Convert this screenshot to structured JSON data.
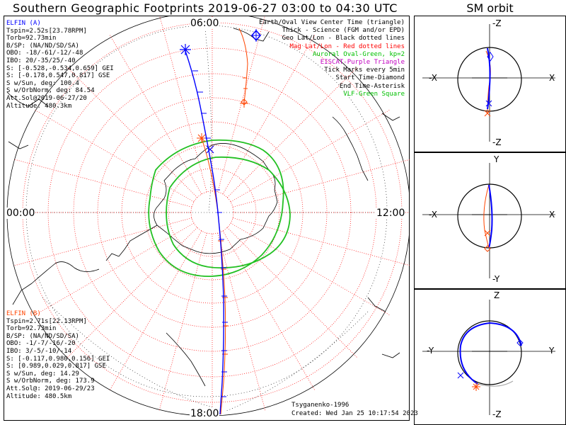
{
  "title": "Southern Geographic Footprints 2019-06-27 03:00 to 04:30 UTC",
  "sm_title": "SM orbit",
  "mlt_labels": {
    "top": "06:00",
    "left": "00:00",
    "right": "12:00",
    "bottom": "18:00"
  },
  "legend": [
    {
      "text": "Earth/Oval View Center Time (triangle)",
      "color": "#000000"
    },
    {
      "text": "Thick - Science (FGM and/or EPD)",
      "color": "#000000"
    },
    {
      "text": "Geo Lat/Lon - Black dotted lines",
      "color": "#000000"
    },
    {
      "text": "Mag Lat/Lon - Red dotted lines",
      "color": "#ff0000"
    },
    {
      "text": "Auroral Oval-Green, kp=2",
      "color": "#00c000"
    },
    {
      "text": "EISCAT-Purple Triangle",
      "color": "#c000c0"
    },
    {
      "text": "Tick Marks every 5min",
      "color": "#000000"
    },
    {
      "text": "Start Time-Diamond",
      "color": "#000000"
    },
    {
      "text": "End Time-Asterisk",
      "color": "#000000"
    },
    {
      "text": "VLF-Green Square",
      "color": "#00c000"
    }
  ],
  "elfin_a": {
    "name": "ELFIN (A)",
    "color": "#0000ff",
    "lines": [
      "Tspin=2.52s[23.78RPM]",
      "Torb=92.73min",
      "B/SP: (NA/ND/SD/SA)",
      "OBO: -18/-61/-12/-48",
      "IBO: 20/-35/25/-40",
      "S: [-0.528,-0.534,0.659] GEI",
      "S: [-0.178,0.547,0.817] GSE",
      "S w/Sun, deg: 100.4",
      "S w/OrbNorm, deg: 84.54",
      "Att.Sol@2019-06-27/20",
      "Altitude: 480.3km"
    ]
  },
  "elfin_b": {
    "name": "ELFIN (B)",
    "color": "#ff4500",
    "lines": [
      "Tspin=2.71s[22.13RPM]",
      "Torb=92.73min",
      "B/SP: (NA/ND/SD/SA)",
      "OBO: -1/-7/-16/-20",
      "IBO: 3/-5/-10/-14",
      "S: [-0.117,0.980,0.156] GEI",
      "S: [0.989,0.029,0.817] GSE",
      "S w/Sun, deg: 14.29",
      "S w/OrbNorm, deg: 173.9",
      "Att.Sol@: 2019-06-29/23",
      "Altitude: 480.5km"
    ]
  },
  "credits": [
    "Tsyganenko-1996",
    "Created: Wed Jan 25 10:17:54 2023"
  ],
  "orbit_panels": [
    {
      "top": "-Z",
      "bottom": "-Z",
      "left": "-X",
      "right": "X"
    },
    {
      "top": "Y",
      "bottom": "-Y",
      "left": "-X",
      "right": "X"
    },
    {
      "top": "Z",
      "bottom": "-Z",
      "left": "-Y",
      "right": "Y"
    }
  ],
  "colors": {
    "elfin_a": "#0000ff",
    "elfin_b": "#ff4500",
    "mag_grid": "#ff0000",
    "oval": "#00c000",
    "geo_grid": "#000000"
  }
}
